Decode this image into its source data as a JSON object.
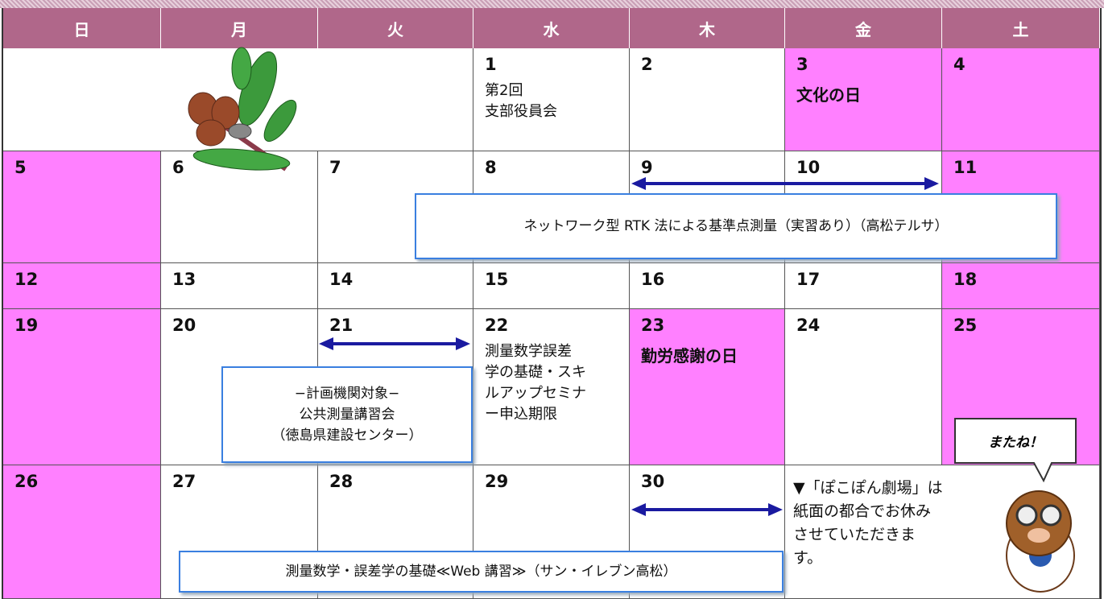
{
  "weekdays": [
    "日",
    "月",
    "火",
    "水",
    "木",
    "金",
    "土"
  ],
  "weeks": [
    [
      {
        "day": 1,
        "lines": [
          "第2回",
          "支部役員会"
        ]
      },
      {
        "day": 2
      },
      {
        "day": 3,
        "holiday": "文化の日"
      },
      {
        "day": 4
      }
    ],
    [
      {
        "day": 5
      },
      {
        "day": 6
      },
      {
        "day": 7
      },
      {
        "day": 8
      },
      {
        "day": 9
      },
      {
        "day": 10
      },
      {
        "day": 11
      }
    ],
    [
      {
        "day": 12
      },
      {
        "day": 13
      },
      {
        "day": 14
      },
      {
        "day": 15
      },
      {
        "day": 16
      },
      {
        "day": 17
      },
      {
        "day": 18
      }
    ],
    [
      {
        "day": 19
      },
      {
        "day": 20
      },
      {
        "day": 21
      },
      {
        "day": 22,
        "lines": [
          "測量数学誤差",
          "学の基礎・スキ",
          "ルアップセミナ",
          "ー申込期限"
        ]
      },
      {
        "day": 23,
        "holiday": "勤労感謝の日"
      },
      {
        "day": 24
      },
      {
        "day": 25
      }
    ],
    [
      {
        "day": 26
      },
      {
        "day": 27
      },
      {
        "day": 28
      },
      {
        "day": 29
      },
      {
        "day": 30
      }
    ]
  ],
  "callouts": [
    {
      "lines": [
        "ネットワーク型 RTK 法による基準点測量（実習あり）（高松テルサ）"
      ]
    },
    {
      "lines": [
        "−計画機関対象−",
        "公共測量講習会",
        "（徳島県建設センター）"
      ]
    },
    {
      "lines": [
        "測量数学・誤差学の基礎≪Web 講習≫（サン・イレブン高松）"
      ]
    }
  ],
  "notice": {
    "lines": [
      "▼「ぽこぽん劇場」は",
      "紙面の都合でお休み",
      "させていただきま",
      "す。"
    ]
  },
  "bubble": "またね！"
}
